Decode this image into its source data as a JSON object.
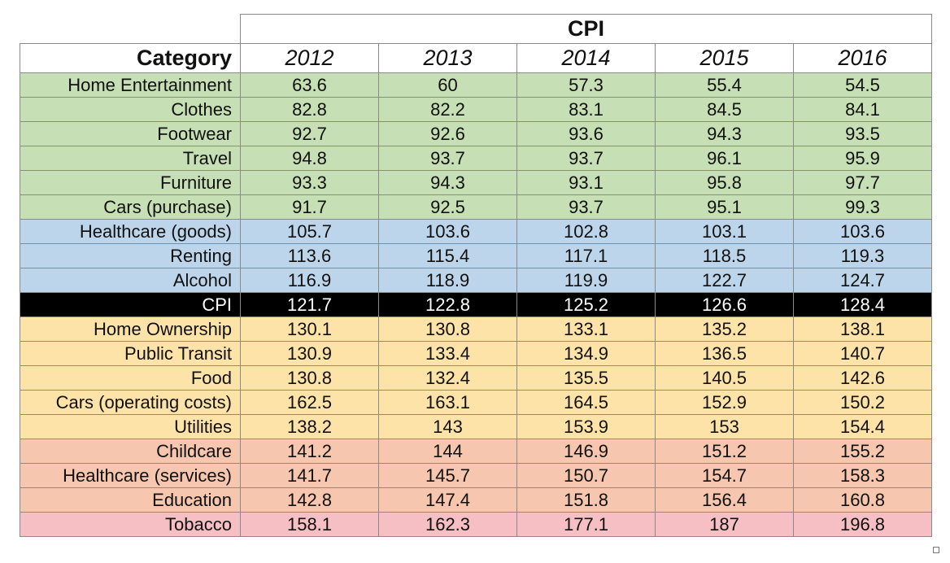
{
  "table": {
    "title": "CPI",
    "category_header": "Category",
    "years": [
      "2012",
      "2013",
      "2014",
      "2015",
      "2016"
    ],
    "group_colors": {
      "green": "#c6dfb4",
      "blue": "#bcd5ea",
      "black": "#000000",
      "orange": "#fde3a8",
      "salmon": "#f7c6ae",
      "pink": "#f6bfc3"
    },
    "rows": [
      {
        "category": "Home Entertainment",
        "group": "green",
        "values": [
          "63.6",
          "60",
          "57.3",
          "55.4",
          "54.5"
        ]
      },
      {
        "category": "Clothes",
        "group": "green",
        "values": [
          "82.8",
          "82.2",
          "83.1",
          "84.5",
          "84.1"
        ]
      },
      {
        "category": "Footwear",
        "group": "green",
        "values": [
          "92.7",
          "92.6",
          "93.6",
          "94.3",
          "93.5"
        ]
      },
      {
        "category": "Travel",
        "group": "green",
        "values": [
          "94.8",
          "93.7",
          "93.7",
          "96.1",
          "95.9"
        ]
      },
      {
        "category": "Furniture",
        "group": "green",
        "values": [
          "93.3",
          "94.3",
          "93.1",
          "95.8",
          "97.7"
        ]
      },
      {
        "category": "Cars (purchase)",
        "group": "green",
        "values": [
          "91.7",
          "92.5",
          "93.7",
          "95.1",
          "99.3"
        ]
      },
      {
        "category": "Healthcare (goods)",
        "group": "blue",
        "values": [
          "105.7",
          "103.6",
          "102.8",
          "103.1",
          "103.6"
        ]
      },
      {
        "category": "Renting",
        "group": "blue",
        "values": [
          "113.6",
          "115.4",
          "117.1",
          "118.5",
          "119.3"
        ]
      },
      {
        "category": "Alcohol",
        "group": "blue",
        "values": [
          "116.9",
          "118.9",
          "119.9",
          "122.7",
          "124.7"
        ]
      },
      {
        "category": "CPI",
        "group": "black",
        "values": [
          "121.7",
          "122.8",
          "125.2",
          "126.6",
          "128.4"
        ]
      },
      {
        "category": "Home Ownership",
        "group": "orange",
        "values": [
          "130.1",
          "130.8",
          "133.1",
          "135.2",
          "138.1"
        ]
      },
      {
        "category": "Public Transit",
        "group": "orange",
        "values": [
          "130.9",
          "133.4",
          "134.9",
          "136.5",
          "140.7"
        ]
      },
      {
        "category": "Food",
        "group": "orange",
        "values": [
          "130.8",
          "132.4",
          "135.5",
          "140.5",
          "142.6"
        ]
      },
      {
        "category": "Cars (operating costs)",
        "group": "orange",
        "values": [
          "162.5",
          "163.1",
          "164.5",
          "152.9",
          "150.2"
        ]
      },
      {
        "category": "Utilities",
        "group": "orange",
        "values": [
          "138.2",
          "143",
          "153.9",
          "153",
          "154.4"
        ]
      },
      {
        "category": "Childcare",
        "group": "salmon",
        "values": [
          "141.2",
          "144",
          "146.9",
          "151.2",
          "155.2"
        ]
      },
      {
        "category": "Healthcare (services)",
        "group": "salmon",
        "values": [
          "141.7",
          "145.7",
          "150.7",
          "154.7",
          "158.3"
        ]
      },
      {
        "category": "Education",
        "group": "salmon",
        "values": [
          "142.8",
          "147.4",
          "151.8",
          "156.4",
          "160.8"
        ]
      },
      {
        "category": "Tobacco",
        "group": "pink",
        "values": [
          "158.1",
          "162.3",
          "177.1",
          "187",
          "196.8"
        ]
      }
    ]
  }
}
